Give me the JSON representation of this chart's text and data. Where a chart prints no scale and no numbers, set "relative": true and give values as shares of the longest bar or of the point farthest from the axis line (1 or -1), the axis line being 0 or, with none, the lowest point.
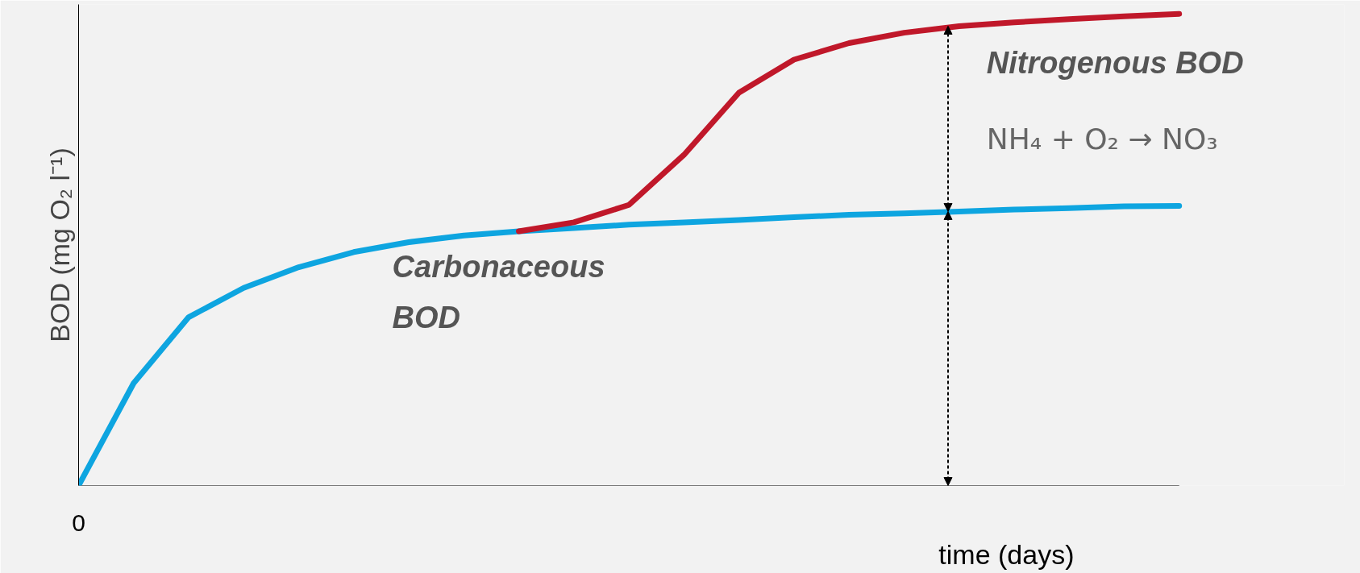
{
  "chart_data": {
    "type": "line",
    "relative": true,
    "marker": "none",
    "line_style": "solid",
    "xlabel": "time (days)",
    "ylabel": "BOD (mg O₂ l⁻¹)",
    "categories": [
      null,
      null,
      null,
      null,
      null,
      null,
      null,
      null,
      null,
      null,
      null,
      null,
      null,
      null,
      null,
      null,
      null,
      null,
      null,
      null,
      null
    ],
    "series": [
      {
        "color": "#0ea5e0",
        "values": [
          0,
          0.217,
          0.357,
          0.419,
          0.463,
          0.495,
          0.516,
          0.53,
          0.539,
          0.546,
          0.553,
          0.558,
          0.563,
          0.569,
          0.574,
          0.577,
          0.581,
          0.585,
          0.588,
          0.592,
          0.593
        ]
      },
      {
        "color": "#c0182a",
        "values": [
          null,
          null,
          null,
          null,
          null,
          null,
          null,
          null,
          0.539,
          0.558,
          0.595,
          0.701,
          0.833,
          0.903,
          0.938,
          0.96,
          0.974,
          0.982,
          0.989,
          0.995,
          1.0
        ]
      }
    ],
    "annotations": [
      "Nitrogenous BOD",
      "NH₄ + O₂ → NO₃",
      "Carbonaceous BOD",
      "0"
    ]
  }
}
